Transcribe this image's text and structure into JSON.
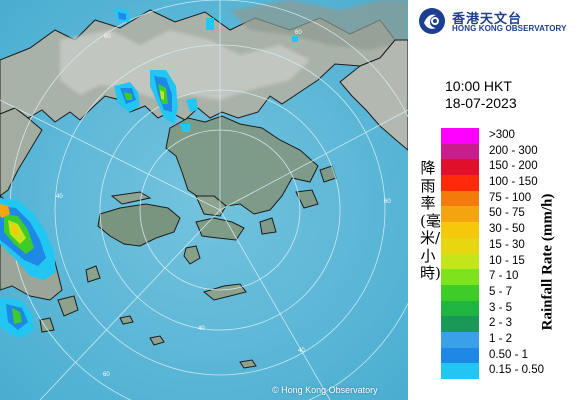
{
  "logo": {
    "name_cn": "香港天文台",
    "name_en": "HONG KONG OBSERVATORY"
  },
  "map": {
    "type": "weather-radar-rainfall",
    "ring_labels": [
      "60",
      "60",
      "60",
      "60",
      "40",
      "40",
      "40"
    ],
    "copyright": "© Hong Kong Observatory"
  },
  "timestamp": {
    "time": "10:00 HKT",
    "date": "18-07-2023"
  },
  "legend": {
    "title_cn": "降雨率(毫米/小時)",
    "title_en": "Rainfall Rate (mm/h)",
    "items": [
      {
        "label": ">300",
        "color": "#ff00ff"
      },
      {
        "label": "200 - 300",
        "color": "#c81e8c"
      },
      {
        "label": "150 - 200",
        "color": "#e0102c"
      },
      {
        "label": "100 - 150",
        "color": "#ff2a0a"
      },
      {
        "label": "75 - 100",
        "color": "#f47a0c"
      },
      {
        "label": "50 - 75",
        "color": "#f4a40e"
      },
      {
        "label": "30 - 50",
        "color": "#f5c90a"
      },
      {
        "label": "15 - 30",
        "color": "#e8d610"
      },
      {
        "label": "10 - 15",
        "color": "#c3e61a"
      },
      {
        "label": "7 - 10",
        "color": "#7ee21c"
      },
      {
        "label": "5 - 7",
        "color": "#3dcc28"
      },
      {
        "label": "3 - 5",
        "color": "#20b440"
      },
      {
        "label": "2 - 3",
        "color": "#1a9858"
      },
      {
        "label": "1 - 2",
        "color": "#3aa0e8"
      },
      {
        "label": "0.50 - 1",
        "color": "#1e88e6"
      },
      {
        "label": "0.15 - 0.50",
        "color": "#22c6f2"
      }
    ]
  }
}
